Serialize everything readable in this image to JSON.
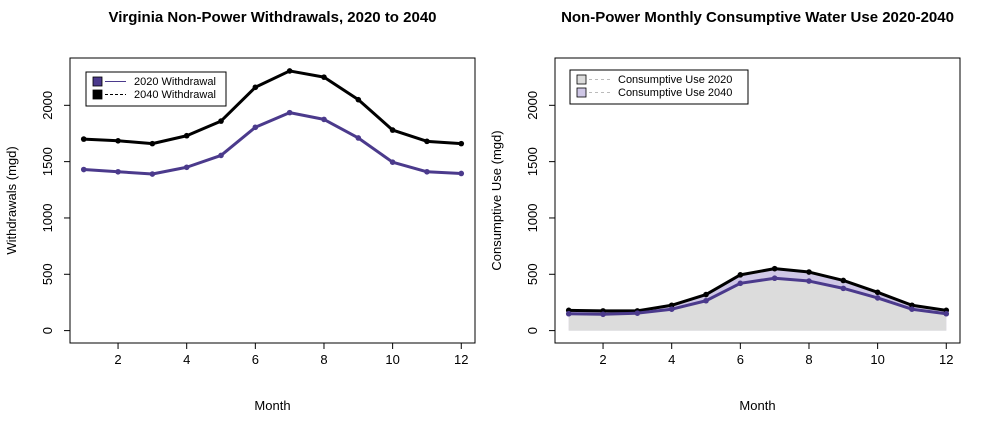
{
  "chart_data": [
    {
      "type": "line",
      "title": "Virginia Non-Power Withdrawals, 2020 to 2040",
      "xlabel": "Month",
      "ylabel": "Withdrawals (mgd)",
      "x": [
        1,
        2,
        3,
        4,
        5,
        6,
        7,
        8,
        9,
        10,
        11,
        12
      ],
      "xticks": [
        2,
        4,
        6,
        8,
        10,
        12
      ],
      "yticks": [
        0,
        500,
        1000,
        1500,
        2000
      ],
      "xlim": [
        0.6,
        12.4
      ],
      "ylim": [
        -110,
        2420
      ],
      "grid": false,
      "legend_position": "top-left",
      "series": [
        {
          "name": "2020 Withdrawal",
          "values": [
            1430,
            1410,
            1390,
            1450,
            1555,
            1805,
            1935,
            1875,
            1710,
            1495,
            1410,
            1395
          ],
          "color": "#4b3a8c",
          "fill": null
        },
        {
          "name": "2040 Withdrawal",
          "values": [
            1700,
            1685,
            1660,
            1730,
            1860,
            2160,
            2305,
            2250,
            2050,
            1780,
            1680,
            1660
          ],
          "color": "#000000",
          "fill": null
        }
      ]
    },
    {
      "type": "area",
      "title": "Non-Power Monthly Consumptive Water Use 2020-2040",
      "xlabel": "Month",
      "ylabel": "Consumptive Use (mgd)",
      "x": [
        1,
        2,
        3,
        4,
        5,
        6,
        7,
        8,
        9,
        10,
        11,
        12
      ],
      "xticks": [
        2,
        4,
        6,
        8,
        10,
        12
      ],
      "yticks": [
        0,
        500,
        1000,
        1500,
        2000
      ],
      "xlim": [
        0.6,
        12.4
      ],
      "ylim": [
        -110,
        2420
      ],
      "grid": false,
      "legend_position": "top-left",
      "series": [
        {
          "name": "Consumptive Use 2020",
          "values": [
            150,
            145,
            155,
            190,
            265,
            420,
            465,
            440,
            375,
            290,
            190,
            150
          ],
          "color": "#4b3a8c",
          "fill": "#dcdcdc"
        },
        {
          "name": "Consumptive Use 2040",
          "values": [
            180,
            175,
            175,
            225,
            320,
            495,
            550,
            520,
            445,
            340,
            225,
            180
          ],
          "color": "#000000",
          "fill": "#cfc7e6"
        }
      ]
    }
  ]
}
